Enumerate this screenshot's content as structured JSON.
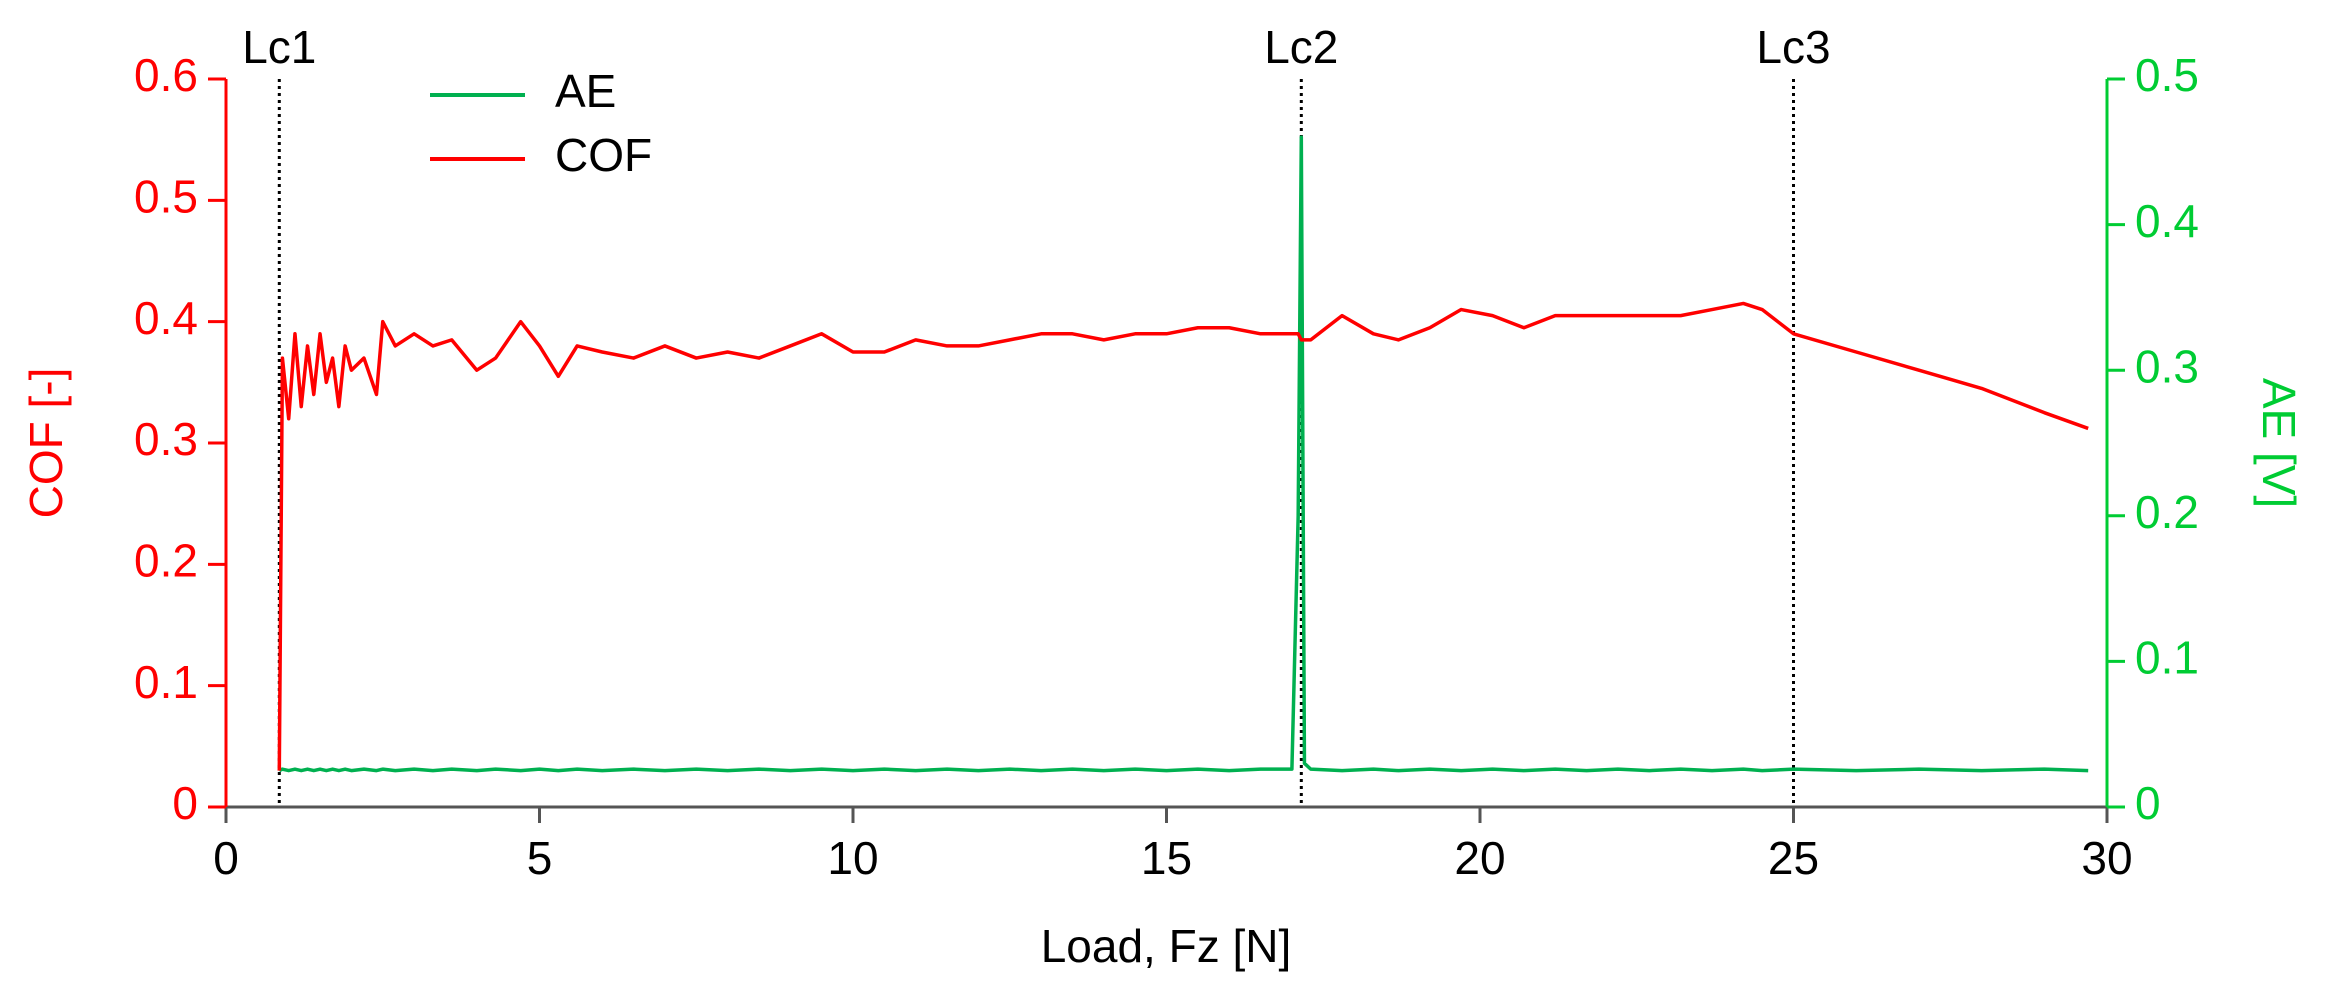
{
  "chart_data": {
    "type": "line",
    "xlabel": "Load, Fz [N]",
    "ylabel": "COF [-]",
    "y2label": "AE [V]",
    "x": [
      0.85,
      0.9,
      1.0,
      1.1,
      1.2,
      1.3,
      1.4,
      1.5,
      1.6,
      1.7,
      1.8,
      1.9,
      2.0,
      2.2,
      2.4,
      2.5,
      2.7,
      3.0,
      3.3,
      3.6,
      4.0,
      4.3,
      4.7,
      5.0,
      5.3,
      5.6,
      6.0,
      6.5,
      7.0,
      7.5,
      8.0,
      8.5,
      9.0,
      9.5,
      10.0,
      10.5,
      11.0,
      11.5,
      12.0,
      12.5,
      13.0,
      13.5,
      14.0,
      14.5,
      15.0,
      15.5,
      16.0,
      16.5,
      17.0,
      17.1,
      17.15,
      17.2,
      17.3,
      17.8,
      18.3,
      18.7,
      19.2,
      19.7,
      20.2,
      20.7,
      21.2,
      21.7,
      22.2,
      22.7,
      23.2,
      23.7,
      24.2,
      24.5,
      25.0,
      26.0,
      27.0,
      28.0,
      29.0,
      29.7
    ],
    "series": [
      {
        "name": "AE",
        "color": "#00b050",
        "axis": "y2",
        "values": [
          0.025,
          0.026,
          0.025,
          0.026,
          0.025,
          0.026,
          0.025,
          0.026,
          0.025,
          0.026,
          0.025,
          0.026,
          0.025,
          0.026,
          0.025,
          0.026,
          0.025,
          0.026,
          0.025,
          0.026,
          0.025,
          0.026,
          0.025,
          0.026,
          0.025,
          0.026,
          0.025,
          0.026,
          0.025,
          0.026,
          0.025,
          0.026,
          0.025,
          0.026,
          0.025,
          0.026,
          0.025,
          0.026,
          0.025,
          0.026,
          0.025,
          0.026,
          0.025,
          0.026,
          0.025,
          0.026,
          0.025,
          0.026,
          0.026,
          0.2,
          0.46,
          0.03,
          0.026,
          0.025,
          0.026,
          0.025,
          0.026,
          0.025,
          0.026,
          0.025,
          0.026,
          0.025,
          0.026,
          0.025,
          0.026,
          0.025,
          0.026,
          0.025,
          0.026,
          0.025,
          0.026,
          0.025,
          0.026,
          0.025
        ]
      },
      {
        "name": "COF",
        "color": "#ff0000",
        "values": [
          0.03,
          0.37,
          0.32,
          0.39,
          0.33,
          0.38,
          0.34,
          0.39,
          0.35,
          0.37,
          0.33,
          0.38,
          0.36,
          0.37,
          0.34,
          0.4,
          0.38,
          0.39,
          0.38,
          0.385,
          0.36,
          0.37,
          0.4,
          0.38,
          0.355,
          0.38,
          0.375,
          0.37,
          0.38,
          0.37,
          0.375,
          0.37,
          0.38,
          0.39,
          0.375,
          0.375,
          0.385,
          0.38,
          0.38,
          0.385,
          0.39,
          0.39,
          0.385,
          0.39,
          0.39,
          0.395,
          0.395,
          0.39,
          0.39,
          0.39,
          0.385,
          0.385,
          0.385,
          0.405,
          0.39,
          0.385,
          0.395,
          0.41,
          0.405,
          0.395,
          0.405,
          0.405,
          0.405,
          0.405,
          0.405,
          0.41,
          0.415,
          0.41,
          0.39,
          0.375,
          0.36,
          0.345,
          0.325,
          0.312
        ]
      }
    ],
    "markers": [
      {
        "x": 0.85,
        "label": "Lc1"
      },
      {
        "x": 17.15,
        "label": "Lc2"
      },
      {
        "x": 25,
        "label": "Lc3"
      }
    ],
    "xlim": [
      0,
      30
    ],
    "xticks": [
      0,
      5,
      10,
      15,
      20,
      25,
      30
    ],
    "ylim": [
      0,
      0.6
    ],
    "yticks": [
      0,
      0.1,
      0.2,
      0.3,
      0.4,
      0.5,
      0.6
    ],
    "ycolor": "#ff0000",
    "y2lim": [
      0,
      0.5
    ],
    "y2ticks": [
      0,
      0.1,
      0.2,
      0.3,
      0.4,
      0.5
    ],
    "y2color": "#00cc33",
    "legend": "upper left"
  }
}
